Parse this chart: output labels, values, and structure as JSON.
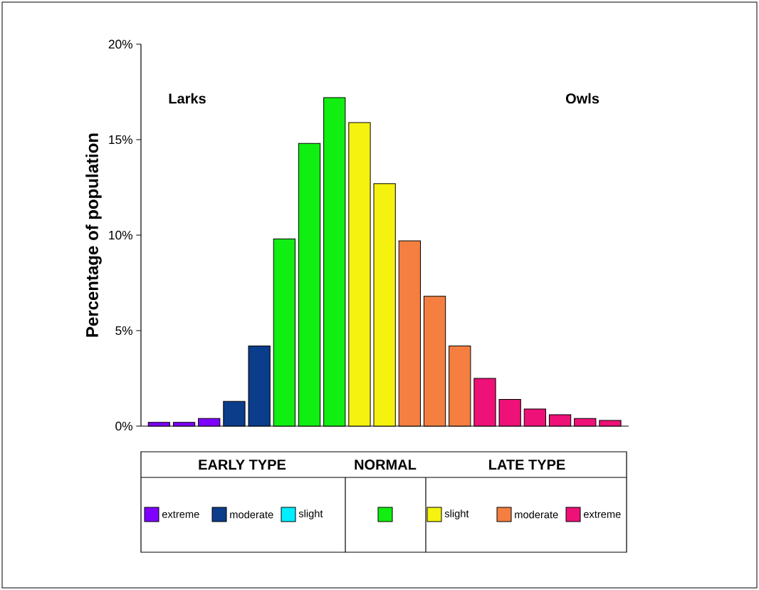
{
  "chart_data": {
    "type": "bar",
    "ylabel": "Percentage of population",
    "categories": [
      null,
      null,
      null,
      null,
      null,
      null,
      null,
      null,
      null,
      null,
      null,
      null,
      null,
      null,
      null,
      null,
      null,
      null,
      null
    ],
    "series": [
      {
        "name": "extreme",
        "color": "#7f00ff",
        "values": [
          0.2,
          0.2,
          0.4,
          null,
          null,
          null,
          null,
          null,
          null,
          null,
          null,
          null,
          null,
          null,
          null,
          null,
          null,
          null,
          null
        ]
      },
      {
        "name": "moderate",
        "color": "#0b3d8a",
        "values": [
          null,
          null,
          null,
          1.3,
          4.2,
          null,
          null,
          null,
          null,
          null,
          null,
          null,
          null,
          null,
          null,
          null,
          null,
          null,
          null
        ]
      },
      {
        "name": "slight",
        "color": "#00eeff",
        "values": [
          null,
          null,
          null,
          null,
          null,
          null,
          null,
          null,
          null,
          null,
          null,
          null,
          null,
          null,
          null,
          null,
          null,
          null,
          null
        ]
      },
      {
        "color": "#11ee11",
        "values": [
          null,
          null,
          null,
          null,
          null,
          9.8,
          14.8,
          17.2,
          null,
          null,
          null,
          null,
          null,
          null,
          null,
          null,
          null,
          null,
          null
        ]
      },
      {
        "name": "slight",
        "color": "#f5f20f",
        "values": [
          null,
          null,
          null,
          null,
          null,
          null,
          null,
          null,
          15.9,
          12.7,
          null,
          null,
          null,
          null,
          null,
          null,
          null,
          null,
          null
        ]
      },
      {
        "name": "moderate",
        "color": "#f47f40",
        "values": [
          null,
          null,
          null,
          null,
          null,
          null,
          null,
          null,
          null,
          null,
          9.7,
          6.8,
          4.2,
          null,
          null,
          null,
          null,
          null,
          null
        ]
      },
      {
        "name": "extreme",
        "color": "#ee1177",
        "values": [
          null,
          null,
          null,
          null,
          null,
          null,
          null,
          null,
          null,
          null,
          null,
          null,
          null,
          2.5,
          1.4,
          0.9,
          0.6,
          0.4,
          0.3
        ]
      }
    ],
    "ylim": [
      0,
      20
    ],
    "yticks": [
      {
        "value": 0,
        "label": "0%"
      },
      {
        "value": 5,
        "label": "5%"
      },
      {
        "value": 10,
        "label": "10%"
      },
      {
        "value": 15,
        "label": "15%"
      },
      {
        "value": 20,
        "label": "20%"
      }
    ],
    "annotations": [
      "Larks",
      "Owls",
      "EARLY TYPE",
      "NORMAL",
      "LATE TYPE"
    ],
    "legend": "bottom",
    "grid": false
  }
}
